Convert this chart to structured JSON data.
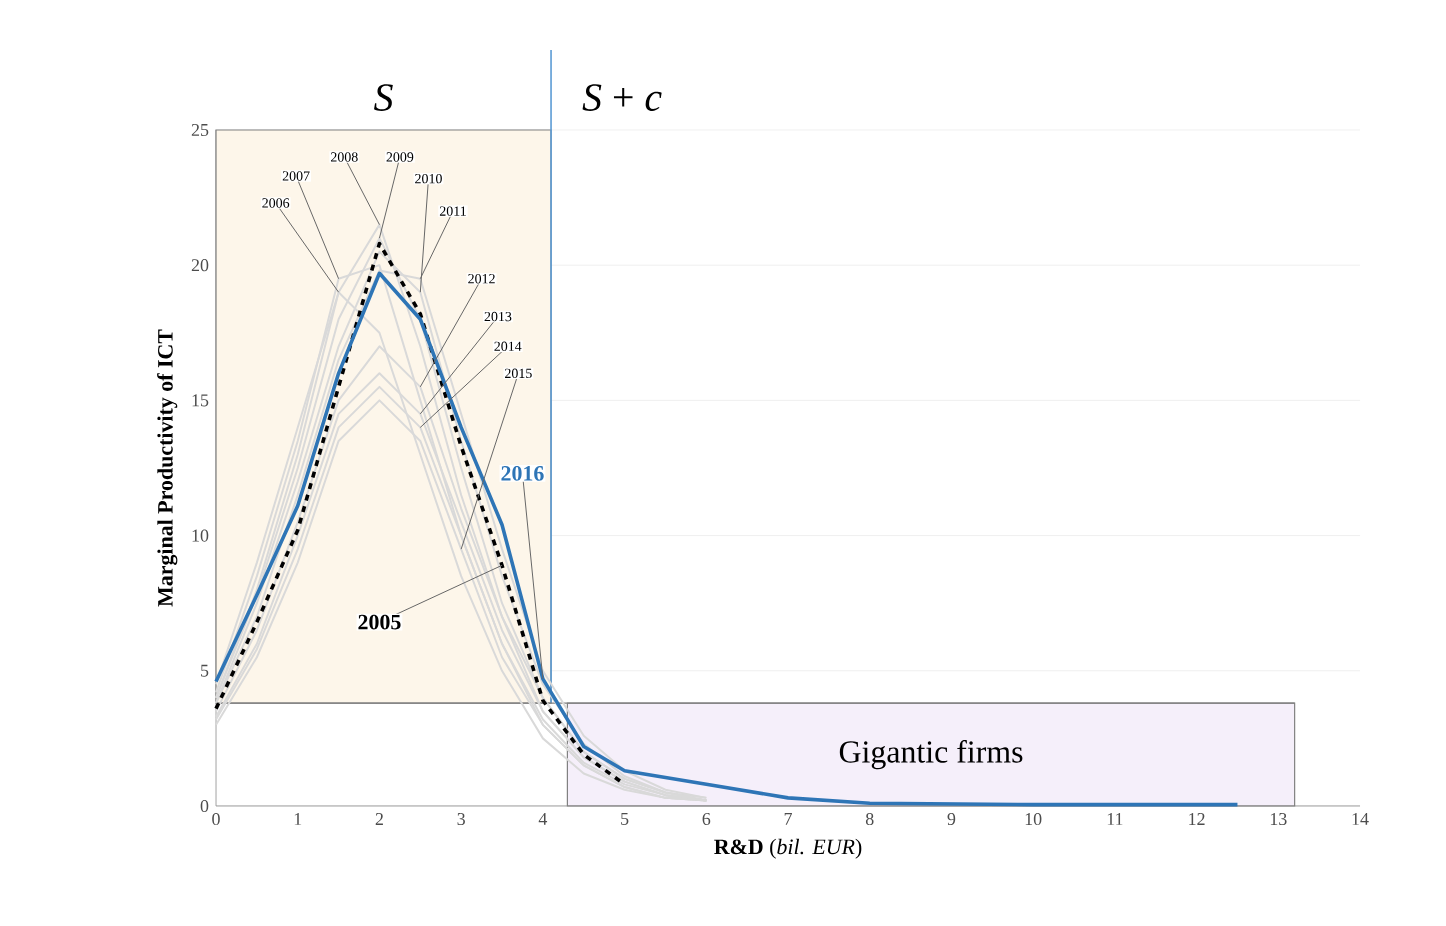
{
  "chart_data": {
    "type": "line",
    "xlabel": "**R&D** (*bil. EUR*)",
    "ylabel": "Marginal Productivity of ICT",
    "xlim": [
      0,
      14
    ],
    "xticks": [
      0,
      1,
      2,
      3,
      4,
      5,
      6,
      7,
      8,
      9,
      10,
      11,
      12,
      13,
      14
    ],
    "ylim": [
      0,
      25
    ],
    "yticks": [
      0,
      5,
      10,
      15,
      20,
      25
    ],
    "grid": "y",
    "series": [
      {
        "name": "2006",
        "color": "#d9d9d9",
        "x": [
          0,
          0.5,
          1,
          1.5,
          2,
          2.5,
          3,
          3.5,
          4,
          4.5,
          5,
          5.5,
          6
        ],
        "values": [
          4.5,
          9,
          14,
          19,
          17.5,
          13,
          8.5,
          5,
          2.5,
          1.2,
          0.6,
          0.3,
          0.2
        ]
      },
      {
        "name": "2007",
        "color": "#d9d9d9",
        "x": [
          0,
          0.5,
          1,
          1.5,
          2,
          2.5,
          3,
          3.5,
          4,
          4.5,
          5,
          5.5,
          6
        ],
        "values": [
          4.2,
          8.5,
          13.5,
          19.5,
          20,
          15,
          10,
          6,
          3,
          1.5,
          0.7,
          0.3,
          0.2
        ]
      },
      {
        "name": "2008",
        "color": "#d9d9d9",
        "x": [
          0,
          0.5,
          1,
          1.5,
          2,
          2.5,
          3,
          3.5,
          4,
          4.5,
          5,
          5.5,
          6
        ],
        "values": [
          4,
          8,
          13,
          19,
          21.5,
          17,
          11.5,
          7,
          3.5,
          1.8,
          0.9,
          0.4,
          0.2
        ]
      },
      {
        "name": "2009",
        "color": "#d9d9d9",
        "x": [
          0,
          0.5,
          1,
          1.5,
          2,
          2.5,
          3,
          3.5,
          4,
          4.5,
          5,
          5.5,
          6
        ],
        "values": [
          4,
          7.8,
          12.5,
          18,
          21,
          18,
          12.5,
          7.5,
          4,
          2,
          1,
          0.5,
          0.2
        ]
      },
      {
        "name": "2010",
        "color": "#d9d9d9",
        "x": [
          0,
          0.5,
          1,
          1.5,
          2,
          2.5,
          3,
          3.5,
          4,
          4.5,
          5,
          5.5,
          6
        ],
        "values": [
          3.8,
          7.5,
          12,
          17,
          20.5,
          19,
          13.5,
          8.5,
          4.5,
          2.3,
          1.1,
          0.5,
          0.3
        ]
      },
      {
        "name": "2011",
        "color": "#d9d9d9",
        "x": [
          0,
          0.5,
          1,
          1.5,
          2,
          2.5,
          3,
          3.5,
          4,
          4.5,
          5,
          5.5,
          6
        ],
        "values": [
          3.8,
          7,
          11.5,
          16.5,
          19.8,
          19.5,
          14.5,
          9.5,
          5,
          2.6,
          1.3,
          0.6,
          0.3
        ]
      },
      {
        "name": "2012",
        "color": "#d9d9d9",
        "x": [
          0,
          0.5,
          1,
          1.5,
          2,
          2.5,
          3,
          3.5,
          4,
          4.5,
          5,
          5.5,
          6
        ],
        "values": [
          3.5,
          6.5,
          10.5,
          15,
          17,
          15.5,
          11,
          7,
          4,
          2,
          1,
          0.5,
          0.2
        ]
      },
      {
        "name": "2013",
        "color": "#d9d9d9",
        "x": [
          0,
          0.5,
          1,
          1.5,
          2,
          2.5,
          3,
          3.5,
          4,
          4.5,
          5,
          5.5,
          6
        ],
        "values": [
          3.3,
          6,
          10,
          14.5,
          16,
          14.5,
          10.5,
          6.5,
          3.5,
          1.8,
          0.9,
          0.4,
          0.2
        ]
      },
      {
        "name": "2014",
        "color": "#d9d9d9",
        "x": [
          0,
          0.5,
          1,
          1.5,
          2,
          2.5,
          3,
          3.5,
          4,
          4.5,
          5,
          5.5,
          6
        ],
        "values": [
          3.2,
          5.8,
          9.5,
          14,
          15.5,
          14,
          10,
          6,
          3.2,
          1.6,
          0.8,
          0.4,
          0.2
        ]
      },
      {
        "name": "2015",
        "color": "#d9d9d9",
        "x": [
          0,
          0.5,
          1,
          1.5,
          2,
          2.5,
          3,
          3.5,
          4,
          4.5,
          5,
          5.5,
          6
        ],
        "values": [
          3,
          5.5,
          9,
          13.5,
          15,
          13.5,
          9.5,
          5.5,
          3,
          1.5,
          0.7,
          0.3,
          0.2
        ]
      },
      {
        "name": "2005",
        "color": "#000000",
        "line_style": "dashed",
        "x": [
          0,
          0.5,
          1,
          1.5,
          2,
          2.5,
          3,
          3.5,
          4,
          4.5,
          5
        ],
        "values": [
          3.6,
          6.8,
          10.2,
          15.5,
          20.8,
          18.2,
          13.3,
          8.9,
          3.9,
          1.9,
          0.8
        ]
      },
      {
        "name": "2016",
        "color": "#2e75b6",
        "x": [
          0,
          0.5,
          1,
          1.5,
          2,
          2.5,
          3,
          3.5,
          4,
          4.5,
          5,
          6,
          7,
          8,
          10,
          12.5
        ],
        "values": [
          4.6,
          7.8,
          11.1,
          16.0,
          19.7,
          18.0,
          14.0,
          10.4,
          4.7,
          2.2,
          1.3,
          0.8,
          0.3,
          0.1,
          0.05,
          0.05
        ]
      }
    ],
    "ref_lines": [
      {
        "axis": "x",
        "value": 4.1,
        "color": "#5b9bd5"
      },
      {
        "axis": "y",
        "value": 3.8,
        "color": "#7f7f7f"
      }
    ],
    "bands": [
      {
        "axis": "x",
        "from": 0,
        "to": 4.1,
        "label": "*S*",
        "color": "#fdf6ea"
      },
      {
        "axis": "x",
        "from": 4.3,
        "to": 13.2,
        "label": "Gigantic firms",
        "color": "#f5effa"
      }
    ],
    "annotations": [
      "*S* + *c*"
    ]
  }
}
